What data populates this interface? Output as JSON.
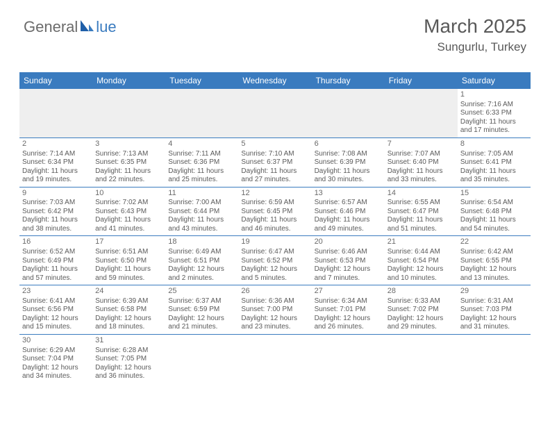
{
  "logo": {
    "text_left": "General",
    "text_right": "lue"
  },
  "header": {
    "title": "March 2025",
    "subtitle": "Sungurlu, Turkey"
  },
  "colors": {
    "header_bg": "#3a7bbf",
    "header_fg": "#ffffff",
    "cell_border": "#3a7bbf",
    "blank_bg": "#efefef",
    "text": "#5a5a5a",
    "title": "#595959"
  },
  "days": [
    "Sunday",
    "Monday",
    "Tuesday",
    "Wednesday",
    "Thursday",
    "Friday",
    "Saturday"
  ],
  "weeks": [
    [
      null,
      null,
      null,
      null,
      null,
      null,
      {
        "n": "1",
        "sr": "Sunrise: 7:16 AM",
        "ss": "Sunset: 6:33 PM",
        "dl": "Daylight: 11 hours and 17 minutes."
      }
    ],
    [
      {
        "n": "2",
        "sr": "Sunrise: 7:14 AM",
        "ss": "Sunset: 6:34 PM",
        "dl": "Daylight: 11 hours and 19 minutes."
      },
      {
        "n": "3",
        "sr": "Sunrise: 7:13 AM",
        "ss": "Sunset: 6:35 PM",
        "dl": "Daylight: 11 hours and 22 minutes."
      },
      {
        "n": "4",
        "sr": "Sunrise: 7:11 AM",
        "ss": "Sunset: 6:36 PM",
        "dl": "Daylight: 11 hours and 25 minutes."
      },
      {
        "n": "5",
        "sr": "Sunrise: 7:10 AM",
        "ss": "Sunset: 6:37 PM",
        "dl": "Daylight: 11 hours and 27 minutes."
      },
      {
        "n": "6",
        "sr": "Sunrise: 7:08 AM",
        "ss": "Sunset: 6:39 PM",
        "dl": "Daylight: 11 hours and 30 minutes."
      },
      {
        "n": "7",
        "sr": "Sunrise: 7:07 AM",
        "ss": "Sunset: 6:40 PM",
        "dl": "Daylight: 11 hours and 33 minutes."
      },
      {
        "n": "8",
        "sr": "Sunrise: 7:05 AM",
        "ss": "Sunset: 6:41 PM",
        "dl": "Daylight: 11 hours and 35 minutes."
      }
    ],
    [
      {
        "n": "9",
        "sr": "Sunrise: 7:03 AM",
        "ss": "Sunset: 6:42 PM",
        "dl": "Daylight: 11 hours and 38 minutes."
      },
      {
        "n": "10",
        "sr": "Sunrise: 7:02 AM",
        "ss": "Sunset: 6:43 PM",
        "dl": "Daylight: 11 hours and 41 minutes."
      },
      {
        "n": "11",
        "sr": "Sunrise: 7:00 AM",
        "ss": "Sunset: 6:44 PM",
        "dl": "Daylight: 11 hours and 43 minutes."
      },
      {
        "n": "12",
        "sr": "Sunrise: 6:59 AM",
        "ss": "Sunset: 6:45 PM",
        "dl": "Daylight: 11 hours and 46 minutes."
      },
      {
        "n": "13",
        "sr": "Sunrise: 6:57 AM",
        "ss": "Sunset: 6:46 PM",
        "dl": "Daylight: 11 hours and 49 minutes."
      },
      {
        "n": "14",
        "sr": "Sunrise: 6:55 AM",
        "ss": "Sunset: 6:47 PM",
        "dl": "Daylight: 11 hours and 51 minutes."
      },
      {
        "n": "15",
        "sr": "Sunrise: 6:54 AM",
        "ss": "Sunset: 6:48 PM",
        "dl": "Daylight: 11 hours and 54 minutes."
      }
    ],
    [
      {
        "n": "16",
        "sr": "Sunrise: 6:52 AM",
        "ss": "Sunset: 6:49 PM",
        "dl": "Daylight: 11 hours and 57 minutes."
      },
      {
        "n": "17",
        "sr": "Sunrise: 6:51 AM",
        "ss": "Sunset: 6:50 PM",
        "dl": "Daylight: 11 hours and 59 minutes."
      },
      {
        "n": "18",
        "sr": "Sunrise: 6:49 AM",
        "ss": "Sunset: 6:51 PM",
        "dl": "Daylight: 12 hours and 2 minutes."
      },
      {
        "n": "19",
        "sr": "Sunrise: 6:47 AM",
        "ss": "Sunset: 6:52 PM",
        "dl": "Daylight: 12 hours and 5 minutes."
      },
      {
        "n": "20",
        "sr": "Sunrise: 6:46 AM",
        "ss": "Sunset: 6:53 PM",
        "dl": "Daylight: 12 hours and 7 minutes."
      },
      {
        "n": "21",
        "sr": "Sunrise: 6:44 AM",
        "ss": "Sunset: 6:54 PM",
        "dl": "Daylight: 12 hours and 10 minutes."
      },
      {
        "n": "22",
        "sr": "Sunrise: 6:42 AM",
        "ss": "Sunset: 6:55 PM",
        "dl": "Daylight: 12 hours and 13 minutes."
      }
    ],
    [
      {
        "n": "23",
        "sr": "Sunrise: 6:41 AM",
        "ss": "Sunset: 6:56 PM",
        "dl": "Daylight: 12 hours and 15 minutes."
      },
      {
        "n": "24",
        "sr": "Sunrise: 6:39 AM",
        "ss": "Sunset: 6:58 PM",
        "dl": "Daylight: 12 hours and 18 minutes."
      },
      {
        "n": "25",
        "sr": "Sunrise: 6:37 AM",
        "ss": "Sunset: 6:59 PM",
        "dl": "Daylight: 12 hours and 21 minutes."
      },
      {
        "n": "26",
        "sr": "Sunrise: 6:36 AM",
        "ss": "Sunset: 7:00 PM",
        "dl": "Daylight: 12 hours and 23 minutes."
      },
      {
        "n": "27",
        "sr": "Sunrise: 6:34 AM",
        "ss": "Sunset: 7:01 PM",
        "dl": "Daylight: 12 hours and 26 minutes."
      },
      {
        "n": "28",
        "sr": "Sunrise: 6:33 AM",
        "ss": "Sunset: 7:02 PM",
        "dl": "Daylight: 12 hours and 29 minutes."
      },
      {
        "n": "29",
        "sr": "Sunrise: 6:31 AM",
        "ss": "Sunset: 7:03 PM",
        "dl": "Daylight: 12 hours and 31 minutes."
      }
    ],
    [
      {
        "n": "30",
        "sr": "Sunrise: 6:29 AM",
        "ss": "Sunset: 7:04 PM",
        "dl": "Daylight: 12 hours and 34 minutes."
      },
      {
        "n": "31",
        "sr": "Sunrise: 6:28 AM",
        "ss": "Sunset: 7:05 PM",
        "dl": "Daylight: 12 hours and 36 minutes."
      },
      null,
      null,
      null,
      null,
      null
    ]
  ]
}
